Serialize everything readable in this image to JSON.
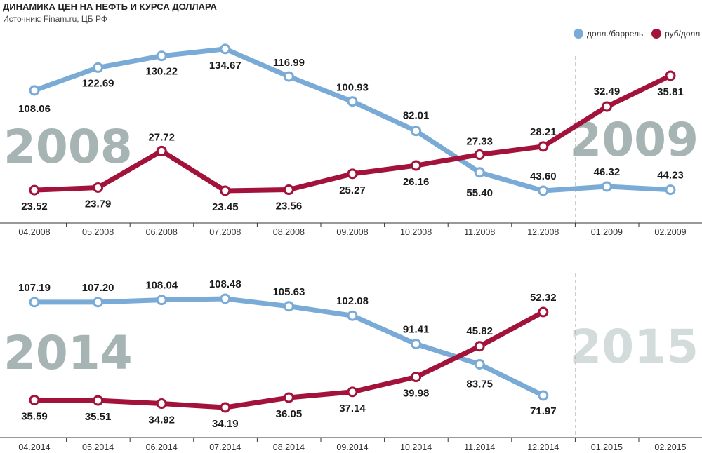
{
  "title": "ДИНАМИКА ЦЕН НА НЕФТЬ И КУРСА ДОЛЛАРА",
  "source": "Источник: Finam.ru, ЦБ РФ",
  "legend": [
    {
      "label": "долл./баррель",
      "color": "#7aaad6"
    },
    {
      "label": "руб/долл",
      "color": "#a3123a"
    }
  ],
  "colors": {
    "oil": "#7aaad6",
    "usd": "#a3123a",
    "year_dark": "#a6b4b3",
    "year_light": "#d3dcdb",
    "divider": "#999999"
  },
  "chart_data": [
    {
      "type": "line",
      "categories": [
        "04.2008",
        "05.2008",
        "06.2008",
        "07.2008",
        "08.2008",
        "09.2008",
        "10.2008",
        "11.2008",
        "12.2008",
        "01.2009",
        "02.2009"
      ],
      "year_labels": [
        "2008",
        "2009"
      ],
      "series": [
        {
          "name": "долл./баррель",
          "values": [
            108.06,
            122.69,
            130.22,
            134.67,
            116.99,
            100.93,
            82.01,
            55.4,
            43.6,
            46.32,
            44.23
          ]
        },
        {
          "name": "руб/долл",
          "values": [
            23.52,
            23.79,
            27.72,
            23.45,
            23.56,
            25.27,
            26.16,
            27.33,
            28.21,
            32.49,
            35.81
          ]
        }
      ]
    },
    {
      "type": "line",
      "categories": [
        "04.2014",
        "05.2014",
        "06.2014",
        "07.2014",
        "08.2014",
        "09.2014",
        "10.2014",
        "11.2014",
        "12.2014",
        "01.2015",
        "02.2015"
      ],
      "year_labels": [
        "2014",
        "2015"
      ],
      "series": [
        {
          "name": "долл./баррель",
          "values": [
            107.19,
            107.2,
            108.04,
            108.48,
            105.63,
            102.08,
            91.41,
            83.75,
            71.97,
            null,
            null
          ]
        },
        {
          "name": "руб/долл",
          "values": [
            35.59,
            35.51,
            34.92,
            34.19,
            36.05,
            37.14,
            39.98,
            45.82,
            52.32,
            null,
            null
          ]
        }
      ]
    }
  ]
}
